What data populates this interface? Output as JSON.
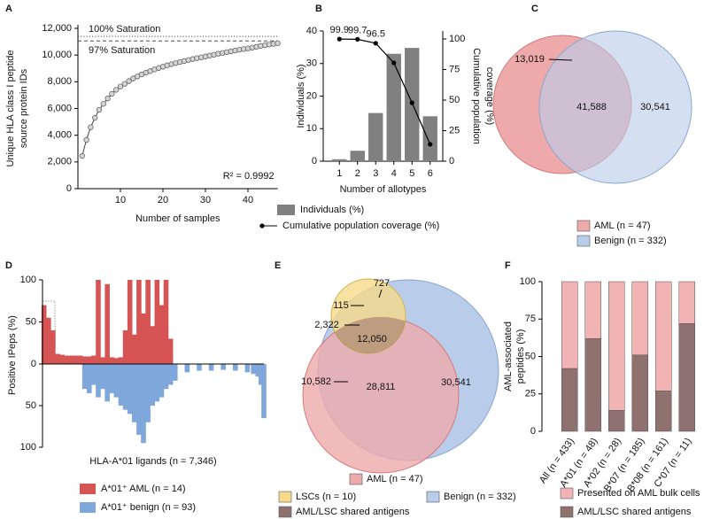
{
  "chart_data": [
    {
      "panel": "A",
      "type": "scatter",
      "xlabel": "Number of samples",
      "ylabel": [
        "Unique HLA class I peptide",
        "source protein IDs"
      ],
      "x": [
        1,
        2,
        3,
        4,
        5,
        6,
        7,
        8,
        9,
        10,
        11,
        12,
        13,
        14,
        15,
        16,
        17,
        18,
        19,
        20,
        21,
        22,
        23,
        24,
        25,
        26,
        27,
        28,
        29,
        30,
        31,
        32,
        33,
        34,
        35,
        36,
        37,
        38,
        39,
        40,
        41,
        42,
        43,
        44,
        45,
        46,
        47
      ],
      "values": [
        2450,
        3650,
        4600,
        5300,
        5900,
        6350,
        6750,
        7100,
        7400,
        7650,
        7850,
        8050,
        8250,
        8400,
        8550,
        8680,
        8800,
        8920,
        9030,
        9130,
        9230,
        9320,
        9400,
        9480,
        9560,
        9630,
        9700,
        9770,
        9830,
        9890,
        9960,
        10030,
        10100,
        10160,
        10220,
        10280,
        10340,
        10400,
        10450,
        10500,
        10560,
        10620,
        10680,
        10740,
        10790,
        10840,
        10890
      ],
      "color": "#d4d4d4",
      "xlim": [
        0,
        47
      ],
      "ylim": [
        0,
        12000
      ],
      "xticks": [
        10,
        20,
        30,
        40
      ],
      "yticks": [
        0,
        {
          "value": 2000,
          "label": "2,000"
        },
        {
          "value": 4000,
          "label": "4,000"
        },
        {
          "value": 6000,
          "label": "6,000"
        },
        {
          "value": 8000,
          "label": "8,000"
        },
        {
          "value": 10000,
          "label": "10,000"
        },
        {
          "value": 12000,
          "label": "12,000"
        }
      ],
      "reference_lines": [
        {
          "label": "100% Saturation",
          "value": 11400,
          "style": "dotted"
        },
        {
          "label": "97% Saturation",
          "value": 11058,
          "style": "dashed"
        }
      ],
      "annotation": "R² = 0.9992"
    },
    {
      "panel": "B",
      "type": "bar",
      "xlabel": "Number of allotypes",
      "ylabel": "Individuals (%)",
      "y2label": [
        "Cumulative population",
        "coverage  (%)"
      ],
      "categories": [
        "1",
        "2",
        "3",
        "4",
        "5",
        "6"
      ],
      "series": [
        {
          "name": "Individuals (%)",
          "color": "#808080",
          "values": [
            0.6,
            3.2,
            14.8,
            33,
            34.8,
            13.8
          ]
        },
        {
          "name": "Cumulative population coverage (%)",
          "color": "#000000",
          "axis": "y2",
          "values": [
            99.9,
            99.7,
            96.5,
            80.4,
            47.8,
            13.8
          ],
          "value_labels": [
            "99.9",
            "99.7",
            "96.5",
            null,
            null,
            null
          ]
        }
      ],
      "ylim": [
        0,
        40
      ],
      "yticks": [
        0,
        10,
        20,
        30,
        40
      ],
      "y2lim": [
        0,
        106.5
      ],
      "y2ticks": [
        0,
        25,
        50,
        75,
        100
      ]
    },
    {
      "panel": "C",
      "type": "venn",
      "sets": [
        {
          "name": "AML (n = 47)",
          "color": "#eeaaab"
        },
        {
          "name": "Benign (n = 332)",
          "color": "#b9cdea"
        }
      ],
      "values": [
        13019,
        41588,
        30541
      ],
      "value_labels": [
        "13,019",
        "41,588",
        "30,541"
      ]
    },
    {
      "panel": "D",
      "type": "mirror-bar",
      "xlabel": "HLA-A*01 ligands (n = 7,346)",
      "ylabel": "Positive IPeps (%)",
      "xlim": [
        0,
        7346
      ],
      "ylim": [
        0,
        100
      ],
      "yticks": [
        0,
        50,
        100
      ],
      "series": [
        {
          "name": "A*01⁺ AML (n = 14)",
          "color": "#d65454",
          "direction": "up",
          "x": [
            50,
            200,
            350,
            500,
            650,
            800,
            950,
            1100,
            1250,
            1400,
            1550,
            1700,
            1850,
            2000,
            2150,
            2300,
            2450,
            2600,
            2750,
            2900,
            3050,
            3200,
            3350,
            3500,
            3650,
            3800,
            3950,
            4100,
            4250
          ],
          "values": [
            70,
            55,
            40,
            12,
            11,
            10,
            10,
            10,
            10,
            9,
            9,
            10,
            100,
            8,
            95,
            8,
            7,
            8,
            40,
            100,
            35,
            100,
            60,
            100,
            45,
            100,
            70,
            100,
            30
          ]
        },
        {
          "name": "A*01⁺ benign (n = 93)",
          "color": "#7fa7dc",
          "direction": "down",
          "x": [
            1400,
            1550,
            1700,
            1850,
            2000,
            2150,
            2300,
            2450,
            2600,
            2750,
            2900,
            3050,
            3200,
            3350,
            3500,
            3650,
            3800,
            3950,
            4100,
            4250,
            4400,
            4800,
            5200,
            5600,
            6000,
            6400,
            6800,
            7000,
            7150,
            7250,
            7346
          ],
          "values": [
            30,
            35,
            25,
            40,
            30,
            45,
            35,
            40,
            50,
            55,
            60,
            70,
            85,
            95,
            70,
            50,
            45,
            40,
            30,
            25,
            20,
            10,
            8,
            8,
            7,
            8,
            10,
            12,
            15,
            25,
            65
          ]
        }
      ]
    },
    {
      "panel": "E",
      "type": "venn",
      "sets": [
        {
          "name": "AML (n = 47)",
          "color": "#eeaaab"
        },
        {
          "name": "LSCs (n = 10)",
          "color": "#f6d98a"
        },
        {
          "name": "Benign (n = 332)",
          "color": "#b9cdea"
        }
      ],
      "highlight": {
        "name": "AML/LSC shared antigens",
        "color": "#8f7170"
      },
      "values": [
        10582,
        2322,
        115,
        727,
        12050,
        28811,
        30541
      ],
      "value_labels": [
        "10,582",
        "2,322",
        "115",
        "727",
        "12,050",
        "28,811",
        "30,541"
      ]
    },
    {
      "panel": "F",
      "type": "stacked-bar",
      "ylabel": [
        "AML-associated",
        "peptides (%)"
      ],
      "categories": [
        "All (n = 433)",
        "A*01 (n = 48)",
        "A*02 (n = 28)",
        "B*07 (n = 185)",
        "B*08 (n = 161)",
        "C*07 (n = 11)"
      ],
      "series": [
        {
          "name": "AML/LSC shared antigens",
          "color": "#8f7170",
          "values": [
            42,
            62,
            14,
            51,
            27,
            72
          ]
        },
        {
          "name": "Presented on AML bulk cells",
          "color": "#f2b3b5",
          "values": [
            58,
            38,
            86,
            49,
            73,
            28
          ]
        }
      ],
      "ylim": [
        0,
        100
      ],
      "yticks": [
        0,
        25,
        50,
        75,
        100
      ]
    }
  ]
}
